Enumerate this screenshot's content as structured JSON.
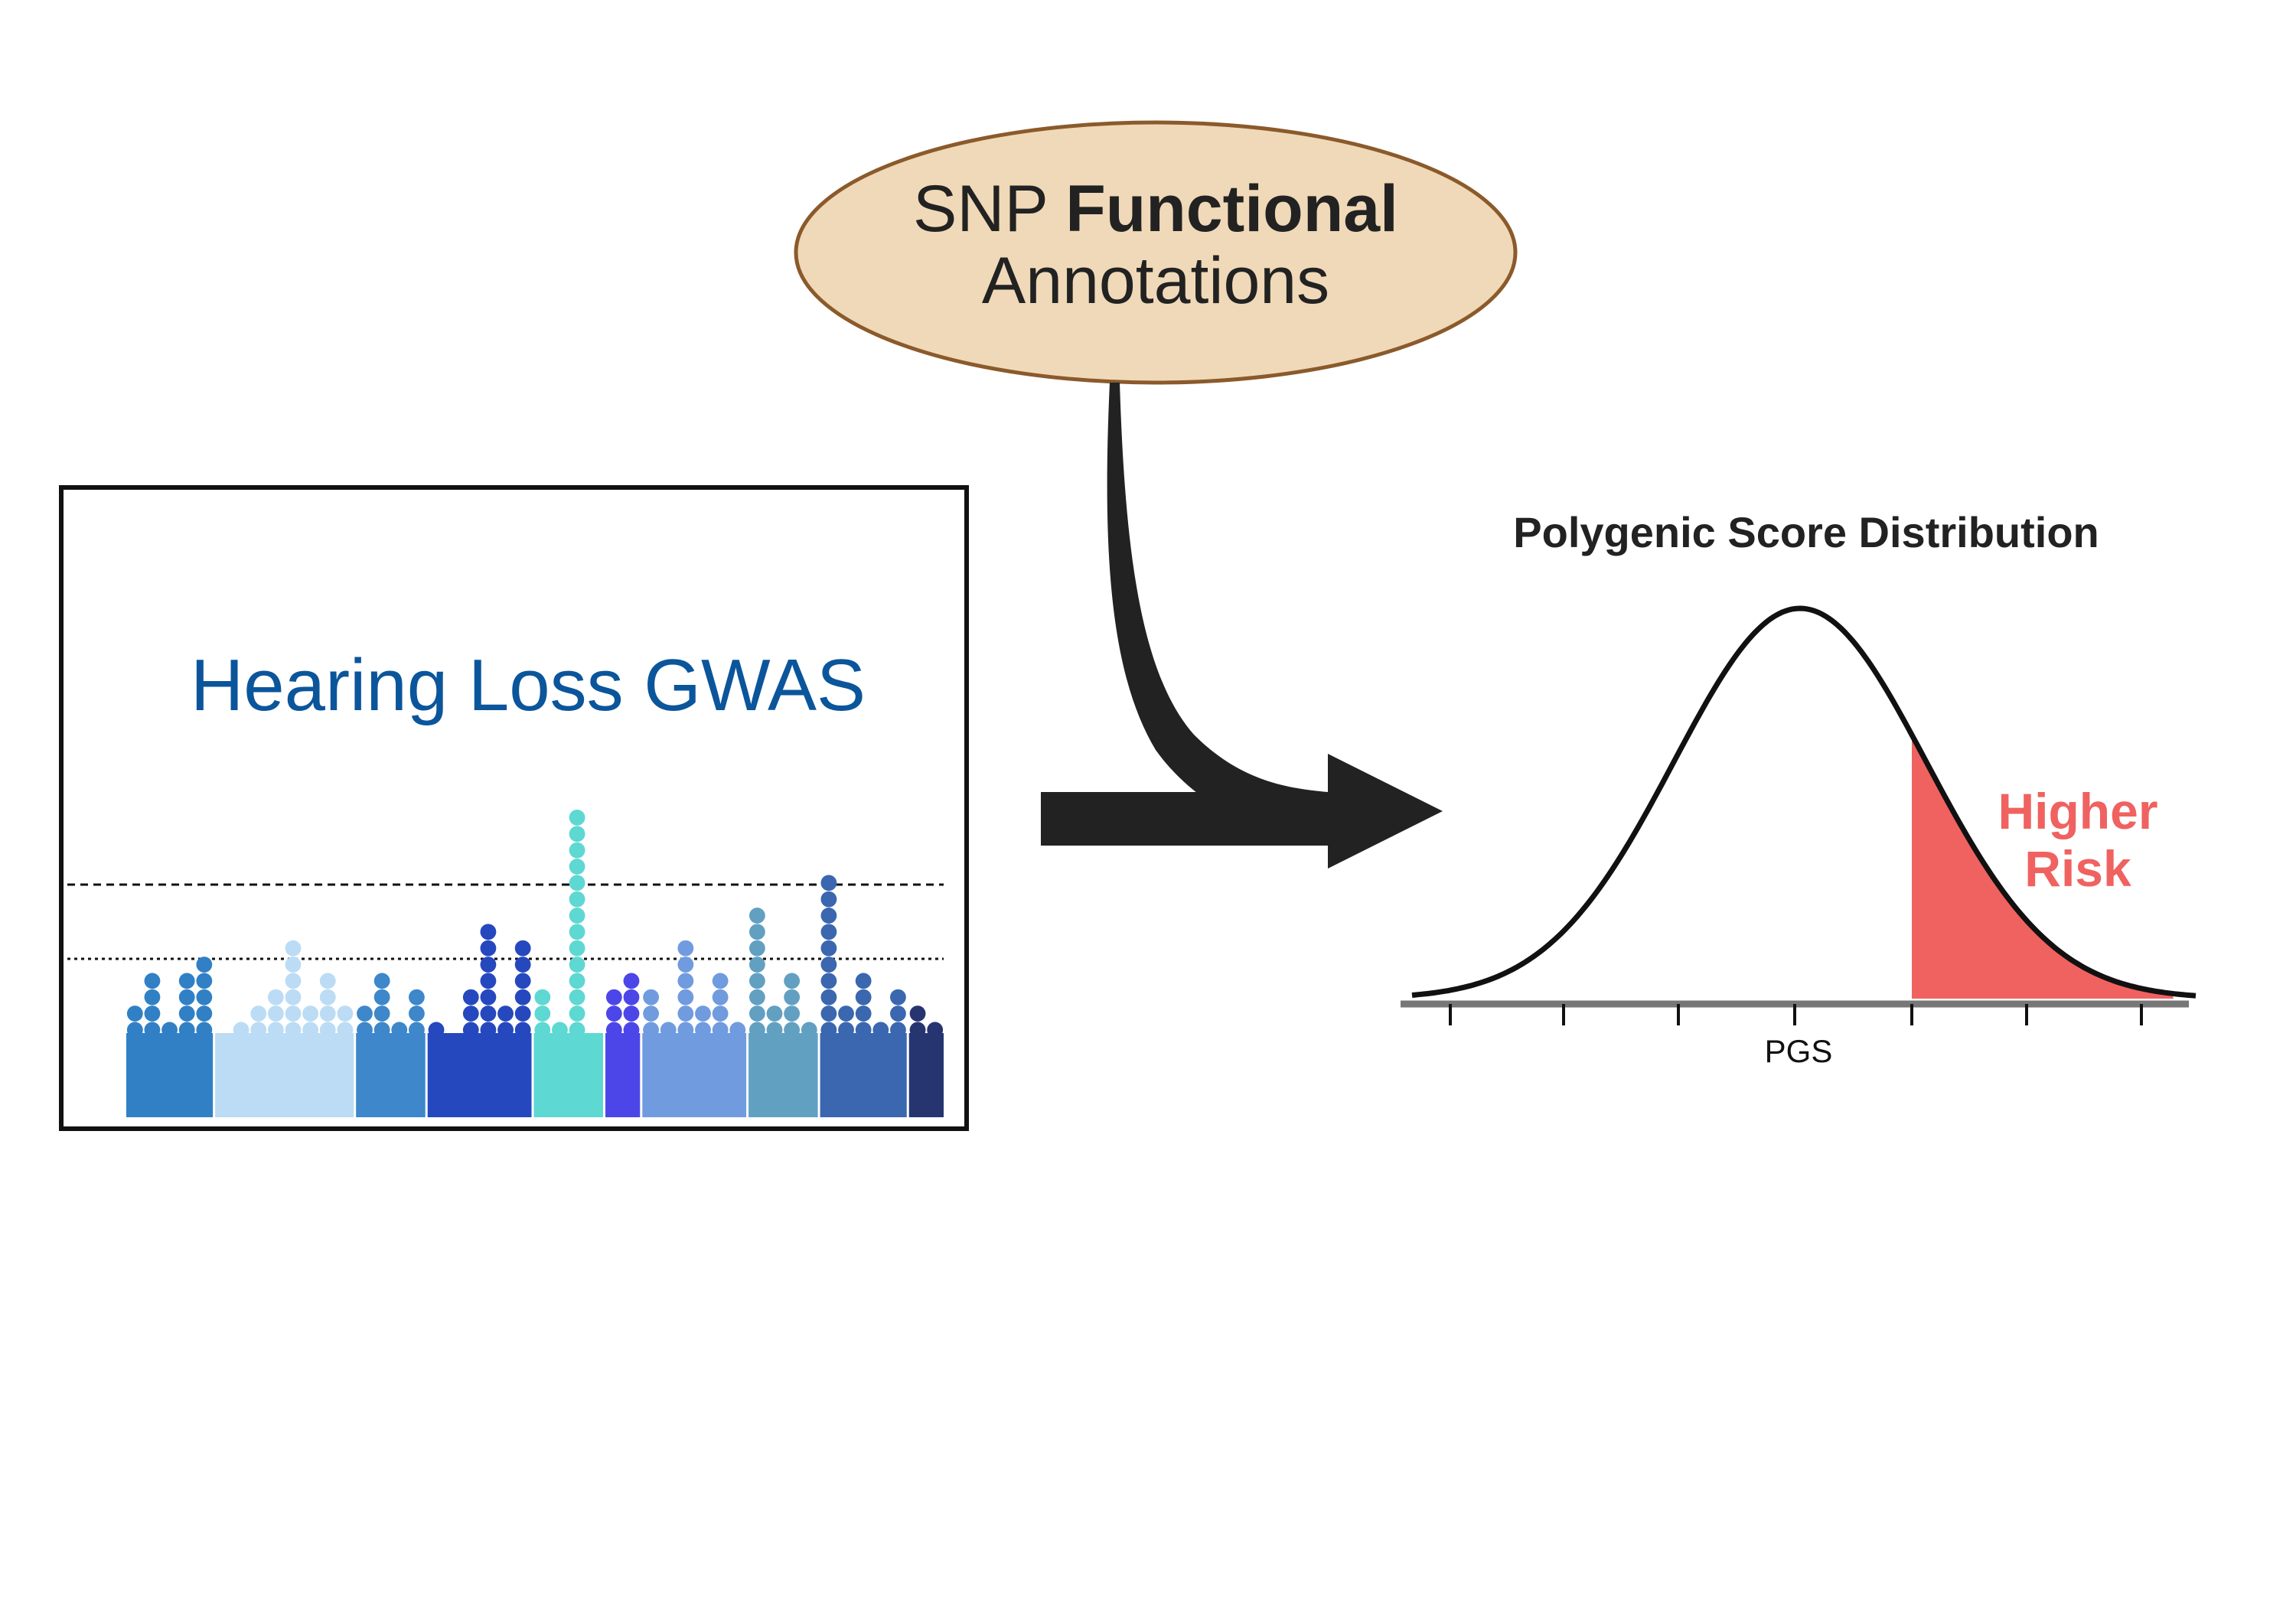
{
  "annotation": {
    "line1_regular": "SNP ",
    "line1_bold": "Functional",
    "line2": "Annotations",
    "fill": "#F0D9B8",
    "stroke": "#8B5A2B"
  },
  "gwas": {
    "title": "Hearing Loss GWAS",
    "title_color": "#0B559B",
    "chromosomes": [
      {
        "color": "#3180C5",
        "columns": [
          2,
          4,
          1,
          4,
          5
        ]
      },
      {
        "color": "#BBDCF4",
        "columns": [
          0,
          1,
          2,
          3,
          6,
          2,
          4,
          2
        ]
      },
      {
        "color": "#3D87CA",
        "columns": [
          2,
          4,
          1,
          3
        ]
      },
      {
        "color": "#2548BE",
        "columns": [
          1,
          0,
          3,
          7,
          2,
          6
        ]
      },
      {
        "color": "#5ED8D3",
        "columns": [
          3,
          1,
          14,
          0
        ]
      },
      {
        "color": "#4C46E8",
        "columns": [
          3,
          4
        ]
      },
      {
        "color": "#709BDF",
        "columns": [
          3,
          1,
          6,
          2,
          4,
          1
        ]
      },
      {
        "color": "#62A0C2",
        "columns": [
          8,
          2,
          4,
          1
        ]
      },
      {
        "color": "#3A67AF",
        "columns": [
          10,
          2,
          4,
          1,
          3
        ]
      },
      {
        "color": "#263570",
        "columns": [
          2,
          1
        ]
      }
    ]
  },
  "pgs": {
    "title": "Polygenic Score Distribution",
    "xlabel": "PGS",
    "risk_line1": "Higher",
    "risk_line2": "Risk",
    "risk_color": "#EF6260"
  },
  "arrow_color": "#222222"
}
